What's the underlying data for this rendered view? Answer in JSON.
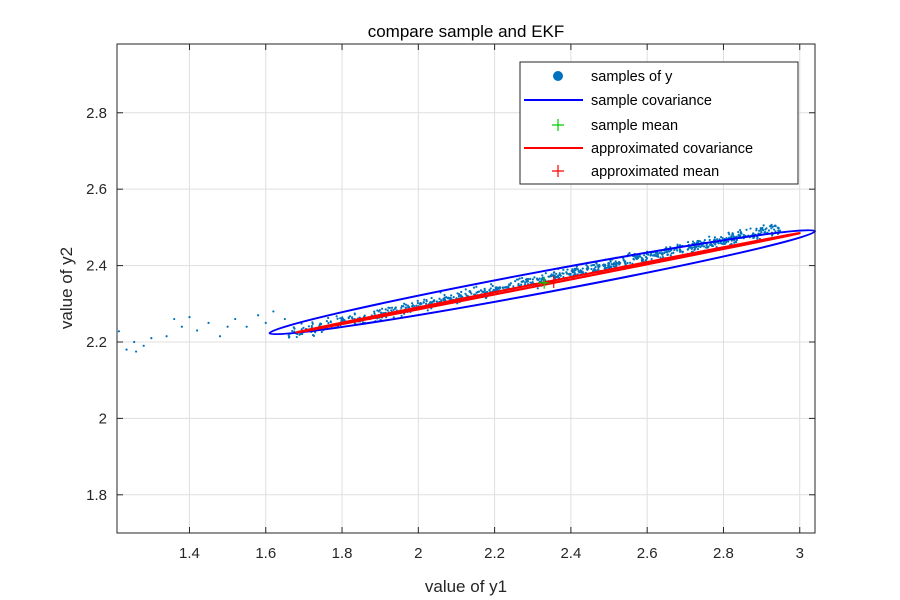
{
  "chart_data": {
    "type": "scatter",
    "title": "compare sample and EKF",
    "xlabel": "value of y1",
    "ylabel": "value of y2",
    "xlim": [
      1.21,
      3.04
    ],
    "ylim": [
      1.7,
      2.98
    ],
    "xticks": [
      1.4,
      1.6,
      1.8,
      2.0,
      2.2,
      2.4,
      2.6,
      2.8,
      3.0
    ],
    "xtick_labels": [
      "1.4",
      "1.6",
      "1.8",
      "2",
      "2.2",
      "2.4",
      "2.6",
      "2.8",
      "3"
    ],
    "yticks": [
      1.8,
      2.0,
      2.2,
      2.4,
      2.6,
      2.8
    ],
    "ytick_labels": [
      "1.8",
      "2",
      "2.2",
      "2.4",
      "2.6",
      "2.8"
    ],
    "grid": true,
    "legend_position": "top-right",
    "legend": [
      "samples of y",
      "sample covariance",
      "sample mean",
      "approximated covariance",
      "approximated mean"
    ],
    "series": [
      {
        "name": "samples of y",
        "kind": "scatter-cloud",
        "color": "#0072BD",
        "trend_slope": 0.215,
        "points": [
          [
            1.215,
            2.228
          ],
          [
            1.235,
            2.18
          ],
          [
            1.26,
            2.175
          ],
          [
            1.255,
            2.2
          ],
          [
            1.28,
            2.19
          ],
          [
            1.3,
            2.21
          ],
          [
            1.34,
            2.215
          ],
          [
            1.36,
            2.26
          ],
          [
            1.38,
            2.24
          ],
          [
            1.4,
            2.265
          ],
          [
            1.42,
            2.23
          ],
          [
            1.45,
            2.25
          ],
          [
            1.48,
            2.215
          ],
          [
            1.5,
            2.24
          ],
          [
            1.52,
            2.26
          ],
          [
            1.55,
            2.24
          ],
          [
            1.58,
            2.27
          ],
          [
            1.6,
            2.25
          ],
          [
            1.62,
            2.28
          ],
          [
            1.65,
            2.26
          ]
        ]
      },
      {
        "name": "sample covariance",
        "kind": "ellipse",
        "color": "#0000FF",
        "center": [
          2.33,
          2.355
        ],
        "ends": [
          [
            1.61,
            2.223
          ],
          [
            3.04,
            2.49
          ]
        ],
        "half_width": 0.028
      },
      {
        "name": "sample mean",
        "kind": "marker",
        "color": "#00CC00",
        "point": [
          2.33,
          2.355
        ]
      },
      {
        "name": "approximated covariance",
        "kind": "ellipse",
        "color": "#FF0000",
        "center": [
          2.355,
          2.357
        ],
        "ends": [
          [
            1.68,
            2.225
          ],
          [
            3.0,
            2.485
          ]
        ],
        "half_width": 0.003
      },
      {
        "name": "approximated mean",
        "kind": "marker",
        "color": "#FF0000",
        "point": [
          2.355,
          2.357
        ]
      }
    ]
  }
}
